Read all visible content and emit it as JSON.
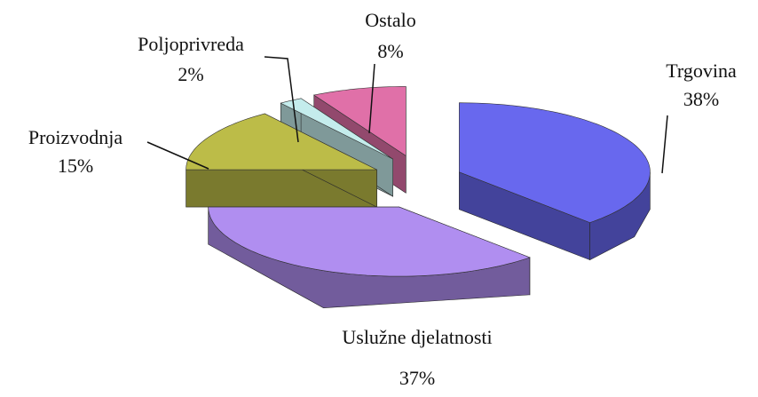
{
  "chart_data": {
    "type": "pie",
    "categories": [
      "Trgovina",
      "Uslužne djelatnosti",
      "Proizvodnja",
      "Poljoprivreda",
      "Ostalo"
    ],
    "values": [
      38,
      37,
      15,
      2,
      8
    ],
    "value_labels": [
      "38%",
      "37%",
      "15%",
      "2%",
      "8%"
    ],
    "colors": [
      "#6868ee",
      "#b08ef0",
      "#bcbc48",
      "#c4ecec",
      "#e070a8"
    ]
  }
}
